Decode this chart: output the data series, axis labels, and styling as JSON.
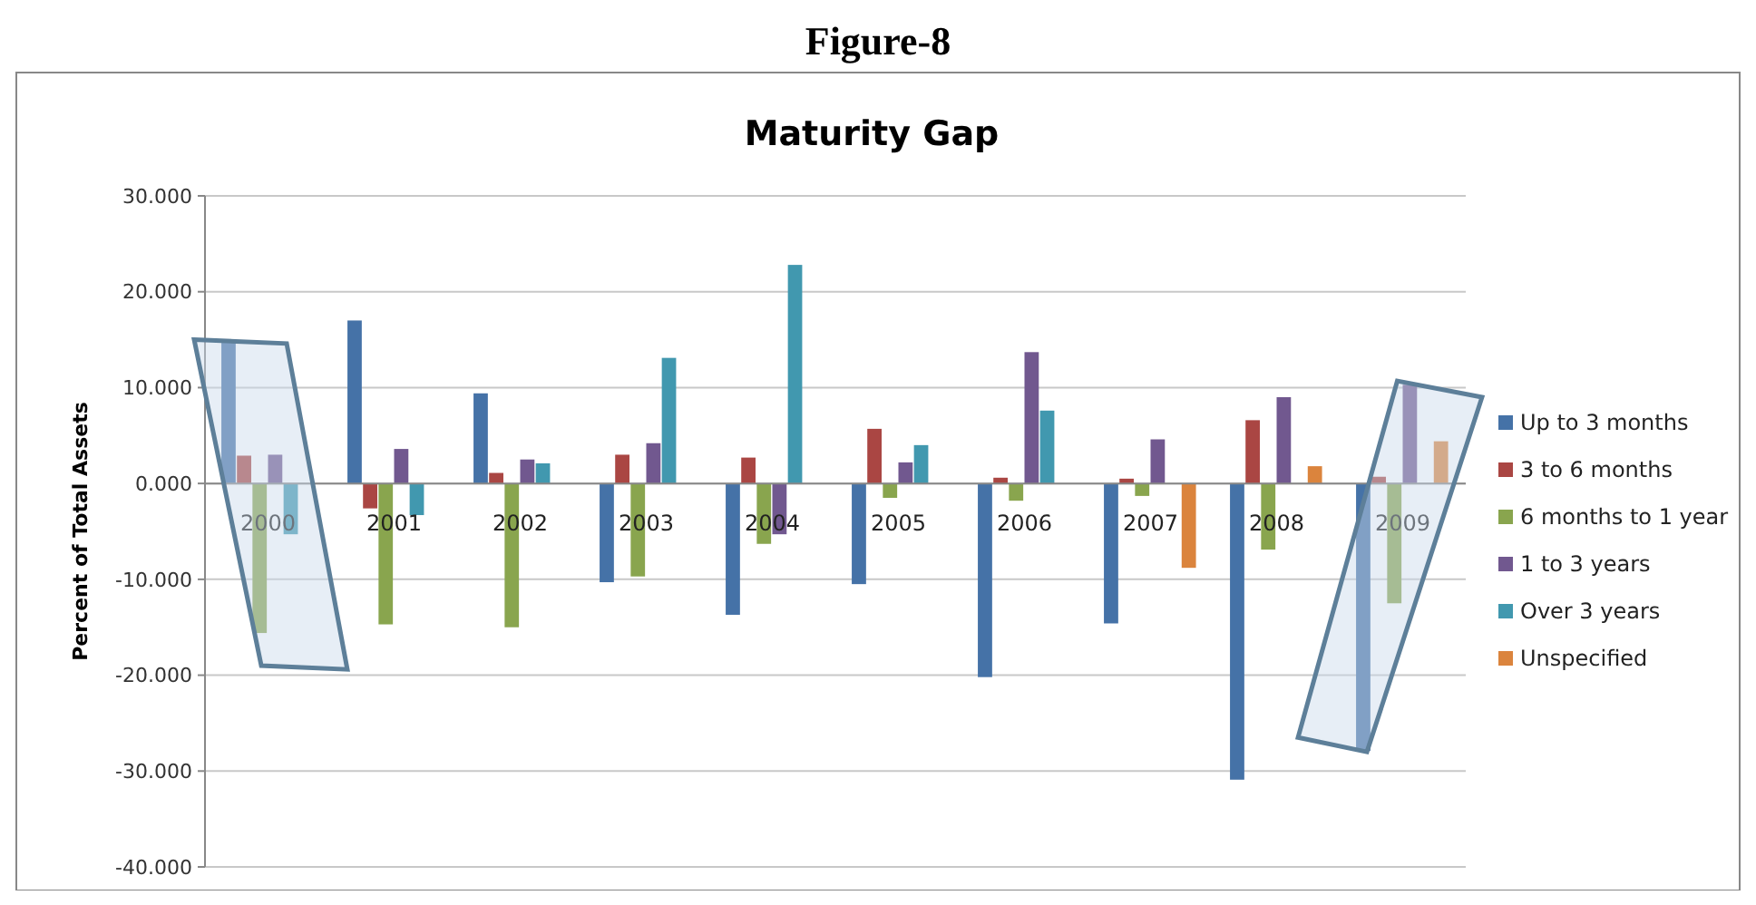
{
  "chart_data": {
    "type": "bar",
    "title": "Maturity Gap",
    "ylabel": "Percent of Total Assets",
    "annotations": [
      "Figure-8"
    ],
    "categories": [
      "2000",
      "2001",
      "2002",
      "2003",
      "2004",
      "2005",
      "2006",
      "2007",
      "2008",
      "2009"
    ],
    "series": [
      {
        "name": "Up to 3 months",
        "color": "#4572a7",
        "values": [
          15.0,
          17.0,
          9.4,
          -10.3,
          -13.7,
          -10.5,
          -20.2,
          -14.6,
          -30.9,
          -27.9
        ]
      },
      {
        "name": "3 to 6 months",
        "color": "#aa4643",
        "values": [
          2.9,
          -2.6,
          1.1,
          3.0,
          2.7,
          5.7,
          0.6,
          0.5,
          6.6,
          0.7
        ]
      },
      {
        "name": "6 months to 1 year",
        "color": "#89a54e",
        "values": [
          -15.6,
          -14.7,
          -15.0,
          -9.7,
          -6.3,
          -1.5,
          -1.8,
          -1.3,
          -6.9,
          -12.5
        ]
      },
      {
        "name": "1 to 3 years",
        "color": "#71588f",
        "values": [
          3.0,
          3.6,
          2.5,
          4.2,
          -5.3,
          2.2,
          13.7,
          4.6,
          9.0,
          10.3
        ]
      },
      {
        "name": "Over 3 years",
        "color": "#4198af",
        "values": [
          -5.3,
          -3.3,
          2.1,
          13.1,
          22.8,
          4.0,
          7.6,
          null,
          null,
          null
        ]
      },
      {
        "name": "Unspecified",
        "color": "#db843d",
        "values": [
          null,
          null,
          null,
          null,
          null,
          null,
          null,
          -8.8,
          1.8,
          4.4
        ]
      }
    ],
    "ylim": [
      -40,
      30
    ],
    "yticks": [
      {
        "value": -40,
        "label": "-40.000"
      },
      {
        "value": -30,
        "label": "-30.000"
      },
      {
        "value": -20,
        "label": "-20.000"
      },
      {
        "value": -10,
        "label": "-10.000"
      },
      {
        "value": 0,
        "label": "0.000"
      },
      {
        "value": 10,
        "label": "10.000"
      },
      {
        "value": 20,
        "label": "20.000"
      },
      {
        "value": 30,
        "label": "30.000"
      }
    ],
    "grid": "y",
    "legend": "right"
  }
}
